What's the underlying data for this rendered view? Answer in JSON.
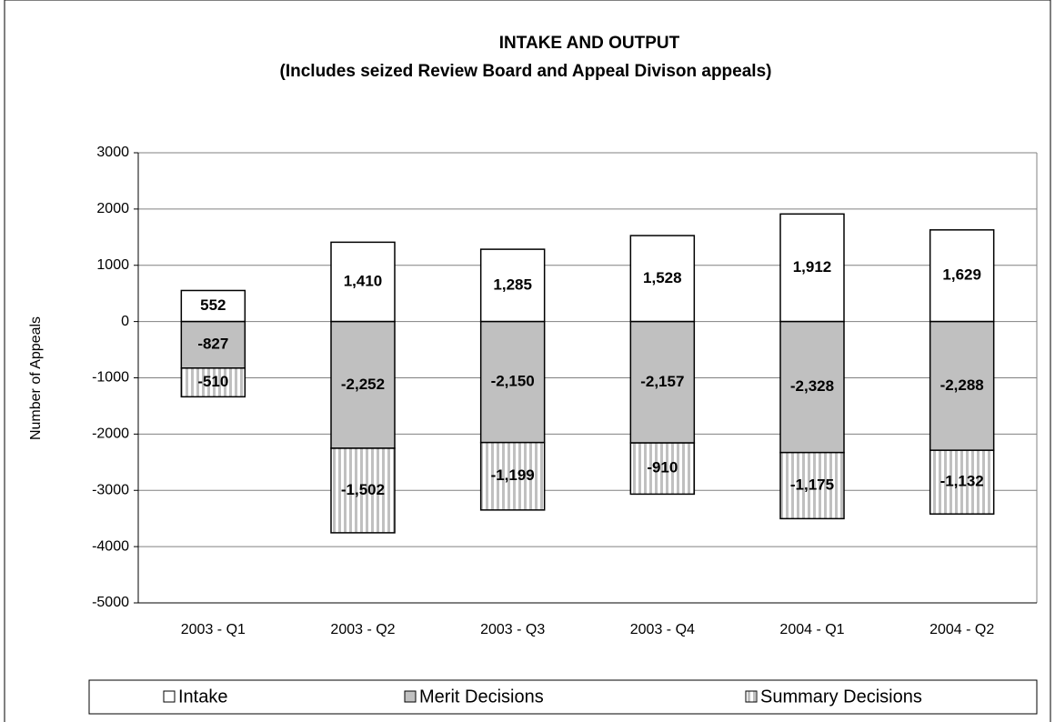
{
  "chart_data": {
    "type": "stacked-bar",
    "title": "INTAKE AND OUTPUT",
    "subtitle": "(Includes seized Review Board and Appeal Divison appeals)",
    "ylabel": "Number of Appeals",
    "categories": [
      "2003 - Q1",
      "2003 - Q2",
      "2003 - Q3",
      "2003 - Q4",
      "2004 - Q1",
      "2004 - Q2"
    ],
    "series": [
      {
        "name": "Intake",
        "color": "#ffffff",
        "values": [
          552,
          1410,
          1285,
          1528,
          1912,
          1629
        ],
        "value_labels": [
          "552",
          "1,410",
          "1,285",
          "1,528",
          "1,912",
          "1,629"
        ]
      },
      {
        "name": "Merit Decisions",
        "color": "#c0c0c0",
        "values": [
          -827,
          -2252,
          -2150,
          -2157,
          -2328,
          -2288
        ],
        "value_labels": [
          "-827",
          "-2,252",
          "-2,150",
          "-2,157",
          "-2,328",
          "-2,288"
        ]
      },
      {
        "name": "Summary Decisions",
        "color": "#c0c0c0",
        "pattern": "vertical-stripes",
        "values": [
          -510,
          -1502,
          -1199,
          -910,
          -1175,
          -1132
        ],
        "value_labels": [
          "-510",
          "-1,502",
          "-1,199",
          "-910",
          "-1,175",
          "-1,132"
        ]
      }
    ],
    "ylim": [
      -5000,
      3000
    ],
    "yticks": [
      -5000,
      -4000,
      -3000,
      -2000,
      -1000,
      0,
      1000,
      2000,
      3000
    ],
    "grid": true,
    "legend": "bottom"
  }
}
